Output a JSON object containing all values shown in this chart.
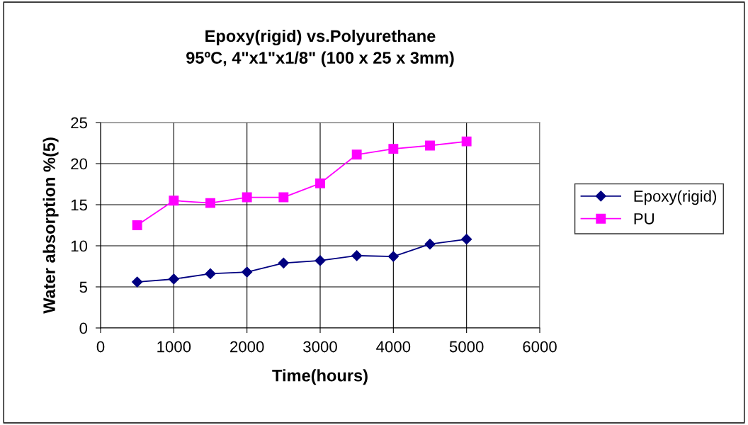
{
  "chart_data": {
    "type": "line",
    "title": "Epoxy(rigid) vs.Polyurethane\n95ºC, 4\"x1\"x1/8\" (100 x 25 x 3mm)",
    "xlabel": "Time(hours)",
    "ylabel": "Water absorption %(5)",
    "x": [
      500,
      1000,
      1500,
      2000,
      2500,
      3000,
      3500,
      4000,
      4500,
      5000
    ],
    "series": [
      {
        "name": "Epoxy(rigid)",
        "color": "#000080",
        "marker": "diamond",
        "values": [
          5.6,
          5.95,
          6.6,
          6.8,
          7.9,
          8.2,
          8.8,
          8.7,
          10.2,
          10.8
        ]
      },
      {
        "name": "PU",
        "color": "#ff00ff",
        "marker": "square",
        "values": [
          12.5,
          15.5,
          15.2,
          15.9,
          15.9,
          17.6,
          21.1,
          21.8,
          22.2,
          22.7
        ]
      }
    ],
    "xlim": [
      0,
      6000
    ],
    "xticks": [
      0,
      1000,
      2000,
      3000,
      4000,
      5000,
      6000
    ],
    "ylim": [
      0,
      25
    ],
    "yticks": [
      0,
      5,
      10,
      15,
      20,
      25
    ],
    "grid": true,
    "legend": "right",
    "line_style": "solid"
  }
}
